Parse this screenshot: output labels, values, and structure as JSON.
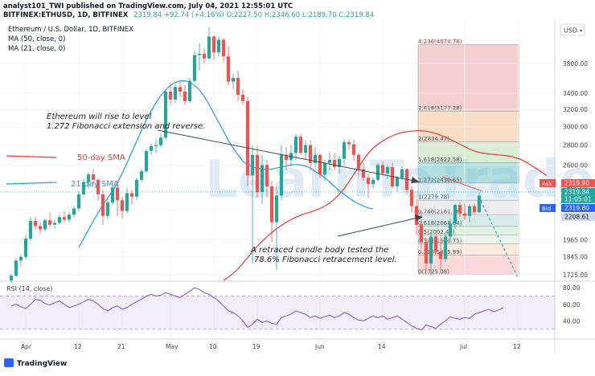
{
  "header": {
    "publisher_line": "analyst101_TWI published on TradingView.com, July 04, 2021 12:55:01 UTC",
    "symbol": "BITFINEX:ETHUSD, 1D, BITFINEX",
    "ohlc": "2319.84  +92.74 (+4.16%)  O:2227.50  H:2346.60  L:2189.70  C:2319.84",
    "title": "Ethereum / U.S. Dollar, 1D, BITFINEX",
    "ma50_legend": "MA (50, close, 0)",
    "ma21_legend": "MA (21, close, 0)",
    "currency": "USD"
  },
  "watermark": "LearnToTrade",
  "annotations": {
    "top_line1": "Ethereum will rise to level",
    "top_line2": "1.272 Fibonacci extension and reverse.",
    "bottom_line1": "A retraced candle body tested the",
    "bottom_line2": "78.6% Fibonacci retracement level.",
    "sma50_label": "50-day SMA",
    "sma21_label": "21-day SMA"
  },
  "fib_levels": [
    {
      "label": "4.236(4074.78)",
      "price": 4074.78
    },
    {
      "label": "2.618(3177.28)",
      "price": 3177.28
    },
    {
      "label": "2(2834.47)",
      "price": 2834.47
    },
    {
      "label": "1.618(2622.58)",
      "price": 2622.58
    },
    {
      "label": "1.272(2430.65)",
      "price": 2430.65
    },
    {
      "label": "1(2279.78)",
      "price": 2279.78
    },
    {
      "label": "0.786(2161.16)",
      "price": 2161.16
    },
    {
      "label": "0.618(2068.04)",
      "price": 2068.04
    },
    {
      "label": "0.5(2002.43)",
      "price": 2002.43
    },
    {
      "label": "0.382(1936.75)",
      "price": 1936.75
    },
    {
      "label": "0.236(1855.99)",
      "price": 1855.99
    },
    {
      "label": "0(1725.08)",
      "price": 1725.08
    }
  ],
  "fib_colors": [
    "#e9a8a8",
    "#f3c29c",
    "#b9dcb0",
    "#75c4c4",
    "#c8e6f0",
    "#dfdfdf",
    "#b5dcd6",
    "#c6e6c4",
    "#d8ecd8",
    "#f5d8c4",
    "#f3b8b8"
  ],
  "price_tags": {
    "ask_label": "Ask",
    "ask": "2319.90",
    "last": "2319.84",
    "countdown": "11:05:01",
    "bid_label": "Bid",
    "bid": "2319.80",
    "ma_value": "2208.61"
  },
  "tag_colors": {
    "ask": "#ef5350",
    "last": "#26a69a",
    "bid": "#2962ff",
    "ma": "#cfd8e8"
  },
  "rsi": {
    "title": "RSI (14, close)",
    "levels": [
      80,
      60,
      40
    ],
    "upper": 70,
    "lower": 30
  },
  "colors": {
    "up": "#26a69a",
    "down": "#ef5350",
    "ma50": "#e53935",
    "ma21": "#2196f3",
    "rsi": "#7e57c2"
  },
  "footer": {
    "brand": "TradingView"
  },
  "chart_data": {
    "type": "candlestick",
    "title": "Ethereum / U.S. Dollar, 1D, BITFINEX",
    "y_scale": "log",
    "y_ticks": [
      1725,
      1845,
      1965,
      2200,
      2400,
      2600,
      2800,
      3000,
      3200,
      3400,
      3800
    ],
    "x_ticks": [
      "Apr",
      "12",
      "21",
      "May",
      "10",
      "19",
      "Jun",
      "14",
      "Jul",
      "12"
    ],
    "x_tick_dates": [
      "2021-04-01",
      "2021-04-12",
      "2021-04-21",
      "2021-05-01",
      "2021-05-10",
      "2021-05-19",
      "2021-06-01",
      "2021-06-14",
      "2021-07-01",
      "2021-07-12"
    ],
    "x_range": [
      "2021-03-27",
      "2021-07-19"
    ],
    "candles_start": "2021-03-29",
    "candles_ohlc": [
      [
        1690,
        1735,
        1670,
        1720
      ],
      [
        1720,
        1835,
        1710,
        1820
      ],
      [
        1820,
        1860,
        1780,
        1845
      ],
      [
        1845,
        2000,
        1830,
        1975
      ],
      [
        1975,
        2140,
        1960,
        2110
      ],
      [
        2110,
        2145,
        2040,
        2070
      ],
      [
        2070,
        2095,
        2010,
        2045
      ],
      [
        2045,
        2130,
        2030,
        2115
      ],
      [
        2115,
        2180,
        2060,
        2080
      ],
      [
        2080,
        2120,
        2050,
        2095
      ],
      [
        2095,
        2160,
        2080,
        2140
      ],
      [
        2140,
        2185,
        2100,
        2120
      ],
      [
        2120,
        2180,
        2100,
        2160
      ],
      [
        2160,
        2230,
        2140,
        2210
      ],
      [
        2210,
        2360,
        2190,
        2330
      ],
      [
        2330,
        2470,
        2310,
        2440
      ],
      [
        2440,
        2530,
        2380,
        2510
      ],
      [
        2510,
        2560,
        2420,
        2460
      ],
      [
        2460,
        2470,
        2280,
        2330
      ],
      [
        2330,
        2370,
        2080,
        2150
      ],
      [
        2150,
        2290,
        2120,
        2260
      ],
      [
        2260,
        2400,
        2240,
        2390
      ],
      [
        2390,
        2450,
        2150,
        2280
      ],
      [
        2280,
        2310,
        2130,
        2190
      ],
      [
        2190,
        2380,
        2170,
        2340
      ],
      [
        2340,
        2370,
        2240,
        2310
      ],
      [
        2310,
        2480,
        2280,
        2460
      ],
      [
        2460,
        2560,
        2440,
        2540
      ],
      [
        2540,
        2760,
        2520,
        2740
      ],
      [
        2740,
        2810,
        2700,
        2790
      ],
      [
        2790,
        2860,
        2720,
        2800
      ],
      [
        2800,
        2920,
        2780,
        2880
      ],
      [
        2880,
        3450,
        2860,
        3420
      ],
      [
        3420,
        3540,
        3250,
        3320
      ],
      [
        3320,
        3520,
        3280,
        3480
      ],
      [
        3480,
        3550,
        3350,
        3420
      ],
      [
        3420,
        3500,
        3250,
        3300
      ],
      [
        3300,
        3600,
        3280,
        3560
      ],
      [
        3560,
        3980,
        3540,
        3920
      ],
      [
        3920,
        4100,
        3700,
        3940
      ],
      [
        3940,
        4020,
        3800,
        3870
      ],
      [
        3870,
        4350,
        3850,
        4200
      ],
      [
        4200,
        4220,
        3850,
        3960
      ],
      [
        3960,
        4200,
        3900,
        4150
      ],
      [
        4150,
        4180,
        3820,
        3900
      ],
      [
        3900,
        4050,
        3500,
        3550
      ],
      [
        3550,
        3650,
        3450,
        3600
      ],
      [
        3600,
        3700,
        3300,
        3380
      ],
      [
        3380,
        3450,
        3250,
        3300
      ],
      [
        3300,
        3350,
        2400,
        2500
      ],
      [
        2500,
        2800,
        1800,
        2700
      ],
      [
        2700,
        2800,
        2300,
        2350
      ],
      [
        2350,
        2700,
        2250,
        2600
      ],
      [
        2600,
        2650,
        2300,
        2400
      ],
      [
        2400,
        2450,
        1950,
        2100
      ],
      [
        2100,
        2400,
        1760,
        2320
      ],
      [
        2320,
        2800,
        2280,
        2700
      ],
      [
        2700,
        2780,
        2550,
        2650
      ],
      [
        2650,
        2800,
        2600,
        2720
      ],
      [
        2720,
        2920,
        2650,
        2890
      ],
      [
        2890,
        2920,
        2700,
        2720
      ],
      [
        2720,
        2850,
        2650,
        2800
      ],
      [
        2800,
        2850,
        2550,
        2620
      ],
      [
        2620,
        2780,
        2580,
        2700
      ],
      [
        2700,
        2720,
        2480,
        2510
      ],
      [
        2510,
        2650,
        2450,
        2620
      ],
      [
        2620,
        2730,
        2550,
        2650
      ],
      [
        2650,
        2720,
        2550,
        2580
      ],
      [
        2580,
        2690,
        2520,
        2660
      ],
      [
        2660,
        2860,
        2600,
        2830
      ],
      [
        2830,
        2860,
        2750,
        2810
      ],
      [
        2810,
        2860,
        2640,
        2700
      ],
      [
        2700,
        2720,
        2500,
        2560
      ],
      [
        2560,
        2620,
        2450,
        2480
      ],
      [
        2480,
        2520,
        2300,
        2420
      ],
      [
        2420,
        2480,
        2380,
        2460
      ],
      [
        2460,
        2620,
        2440,
        2600
      ],
      [
        2600,
        2640,
        2500,
        2520
      ],
      [
        2520,
        2600,
        2470,
        2580
      ],
      [
        2580,
        2620,
        2380,
        2400
      ],
      [
        2400,
        2500,
        2350,
        2480
      ],
      [
        2480,
        2590,
        2460,
        2560
      ],
      [
        2560,
        2570,
        2340,
        2370
      ],
      [
        2370,
        2400,
        2180,
        2230
      ],
      [
        2230,
        2290,
        2000,
        2080
      ],
      [
        2080,
        2180,
        1900,
        1950
      ],
      [
        1950,
        1980,
        1750,
        1800
      ],
      [
        1800,
        2020,
        1720,
        1990
      ],
      [
        1990,
        2040,
        1860,
        1880
      ],
      [
        1880,
        2000,
        1760,
        1830
      ],
      [
        1830,
        2010,
        1810,
        1990
      ],
      [
        1990,
        2130,
        1960,
        2090
      ],
      [
        2090,
        2250,
        2050,
        2240
      ],
      [
        2240,
        2270,
        2140,
        2170
      ],
      [
        2170,
        2250,
        2120,
        2150
      ],
      [
        2150,
        2250,
        2100,
        2230
      ],
      [
        2230,
        2250,
        2160,
        2180
      ],
      [
        2180,
        2350,
        2170,
        2320
      ]
    ],
    "ma50": [
      1690,
      1710,
      1735,
      1765,
      1800,
      1840,
      1880,
      1920,
      1955,
      1990,
      2020,
      2050,
      2075,
      2100,
      2120,
      2140,
      2155,
      2170,
      2180,
      2195,
      2210,
      2230,
      2255,
      2290,
      2330,
      2380,
      2440,
      2510,
      2580,
      2650,
      2715,
      2770,
      2810,
      2845,
      2875,
      2900,
      2920,
      2935,
      2945,
      2950,
      2955,
      2955,
      2950,
      2940,
      2925,
      2905,
      2885,
      2860,
      2835,
      2810,
      2785,
      2760,
      2740,
      2725,
      2715,
      2710,
      2705,
      2700,
      2695,
      2690,
      2680,
      2665,
      2645,
      2620,
      2590,
      2560,
      2530,
      2500
    ],
    "ma50_start": "2021-05-12",
    "ma21": [
      1910,
      1975,
      2040,
      2110,
      2175,
      2240,
      2300,
      2360,
      2430,
      2520,
      2620,
      2730,
      2840,
      2960,
      3080,
      3180,
      3280,
      3370,
      3440,
      3500,
      3540,
      3560,
      3560,
      3540,
      3500,
      3440,
      3360,
      3260,
      3150,
      3050,
      2950,
      2850,
      2770,
      2700,
      2640,
      2600,
      2580,
      2570,
      2560,
      2555,
      2560,
      2570,
      2580,
      2590,
      2600,
      2605,
      2600,
      2590,
      2570,
      2540,
      2510,
      2480,
      2440,
      2400,
      2360,
      2330,
      2300,
      2270,
      2250,
      2230,
      2215,
      2208
    ],
    "ma21_start": "2021-04-12",
    "rsi": [
      58,
      60,
      57,
      55,
      60,
      66,
      65,
      61,
      59,
      62,
      64,
      60,
      56,
      58,
      60,
      63,
      66,
      64,
      60,
      55,
      52,
      56,
      58,
      54,
      56,
      60,
      63,
      66,
      70,
      72,
      70,
      71,
      74,
      72,
      70,
      68,
      72,
      76,
      80,
      78,
      74,
      72,
      68,
      64,
      58,
      52,
      50,
      46,
      40,
      32,
      36,
      42,
      38,
      40,
      37,
      36,
      44,
      46,
      48,
      52,
      50,
      48,
      44,
      46,
      43,
      45,
      47,
      44,
      46,
      50,
      48,
      44,
      41,
      40,
      43,
      46,
      44,
      46,
      42,
      44,
      46,
      42,
      38,
      34,
      31,
      29,
      35,
      33,
      31,
      36,
      40,
      45,
      43,
      42,
      44,
      43,
      48,
      50,
      52,
      54,
      51,
      53,
      56
    ],
    "rsi_start": "2021-03-29"
  }
}
